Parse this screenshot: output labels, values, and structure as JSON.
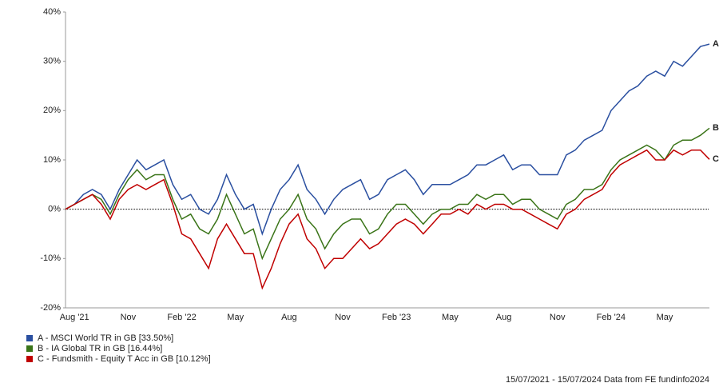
{
  "chart_data": {
    "type": "line",
    "categories": [
      "15/07/2021",
      "Aug '21",
      null,
      null,
      null,
      null,
      null,
      "Nov",
      null,
      null,
      null,
      null,
      null,
      "Feb '22",
      null,
      null,
      null,
      null,
      null,
      "May",
      null,
      null,
      null,
      null,
      null,
      "Aug",
      null,
      null,
      null,
      null,
      null,
      "Nov",
      null,
      null,
      null,
      null,
      null,
      "Feb '23",
      null,
      null,
      null,
      null,
      null,
      "May",
      null,
      null,
      null,
      null,
      null,
      "Aug",
      null,
      null,
      null,
      null,
      null,
      "Nov",
      null,
      null,
      null,
      null,
      null,
      "Feb '24",
      null,
      null,
      null,
      null,
      null,
      "May",
      null,
      null,
      null,
      null,
      "15/07/2024"
    ],
    "series": [
      {
        "name": "A - MSCI World TR in GB [33.50%]",
        "end_label": "A",
        "color": "#2a4fa0",
        "values": [
          0,
          1,
          3,
          4,
          3,
          0,
          4,
          7,
          10,
          8,
          9,
          10,
          5,
          2,
          3,
          0,
          -1,
          2,
          7,
          3,
          0,
          1,
          -5,
          0,
          4,
          6,
          9,
          4,
          2,
          -1,
          2,
          4,
          5,
          6,
          2,
          3,
          6,
          7,
          8,
          6,
          3,
          5,
          5,
          5,
          6,
          7,
          9,
          9,
          10,
          11,
          8,
          9,
          9,
          7,
          7,
          7,
          11,
          12,
          14,
          15,
          16,
          20,
          22,
          24,
          25,
          27,
          28,
          27,
          30,
          29,
          31,
          33,
          33.5
        ]
      },
      {
        "name": "B - IA Global TR in GB [16.44%]",
        "end_label": "B",
        "color": "#3a7418",
        "values": [
          0,
          1,
          2,
          3,
          2,
          -1,
          3,
          6,
          8,
          6,
          7,
          7,
          2,
          -2,
          -1,
          -4,
          -5,
          -2,
          3,
          -1,
          -5,
          -4,
          -10,
          -6,
          -2,
          0,
          3,
          -2,
          -4,
          -8,
          -5,
          -3,
          -2,
          -2,
          -5,
          -4,
          -1,
          1,
          1,
          -1,
          -3,
          -1,
          0,
          0,
          1,
          1,
          3,
          2,
          3,
          3,
          1,
          2,
          2,
          0,
          -1,
          -2,
          1,
          2,
          4,
          4,
          5,
          8,
          10,
          11,
          12,
          13,
          12,
          10,
          13,
          14,
          14,
          15,
          16.44
        ]
      },
      {
        "name": "C - Fundsmith - Equity T Acc in GB [10.12%]",
        "end_label": "C",
        "color": "#c00000",
        "values": [
          0,
          1,
          2,
          3,
          1,
          -2,
          2,
          4,
          5,
          4,
          5,
          6,
          1,
          -5,
          -6,
          -9,
          -12,
          -6,
          -3,
          -6,
          -9,
          -9,
          -16,
          -12,
          -7,
          -3,
          -1,
          -6,
          -8,
          -12,
          -10,
          -10,
          -8,
          -6,
          -8,
          -7,
          -5,
          -3,
          -2,
          -3,
          -5,
          -3,
          -1,
          -1,
          0,
          -1,
          1,
          0,
          1,
          1,
          0,
          0,
          -1,
          -2,
          -3,
          -4,
          -1,
          0,
          2,
          3,
          4,
          7,
          9,
          10,
          11,
          12,
          10,
          10,
          12,
          11,
          12,
          12,
          10.12
        ]
      }
    ],
    "ylim": [
      -20,
      40
    ],
    "yticks": [
      {
        "value": -20,
        "label": "-20%"
      },
      {
        "value": -10,
        "label": "-10%"
      },
      {
        "value": 0,
        "label": "0%"
      },
      {
        "value": 10,
        "label": "10%"
      },
      {
        "value": 20,
        "label": "20%"
      },
      {
        "value": 30,
        "label": "30%"
      },
      {
        "value": 40,
        "label": "40%"
      }
    ],
    "zero_line": true,
    "footer": "15/07/2021 - 15/07/2024 Data from FE fundinfo2024"
  }
}
